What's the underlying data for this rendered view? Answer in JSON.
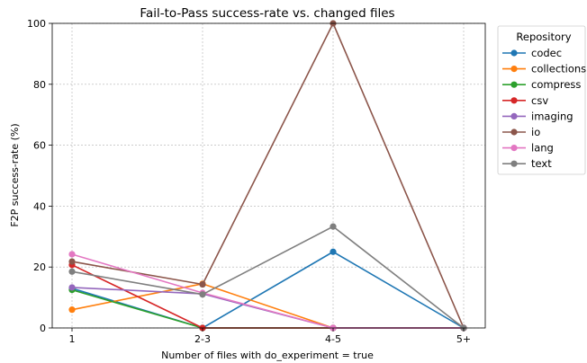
{
  "chart_data": {
    "type": "line",
    "title": "Fail-to-Pass success-rate vs. changed files",
    "xlabel": "Number of files with do_experiment = true",
    "ylabel": "F2P success-rate (%)",
    "categories": [
      "1",
      "2-3",
      "4-5",
      "5+"
    ],
    "ylim": [
      0,
      100
    ],
    "yticks": [
      0,
      20,
      40,
      60,
      80,
      100
    ],
    "grid": true,
    "legend": {
      "title": "Repository",
      "placement": "outside-top-right"
    },
    "series": [
      {
        "name": "codec",
        "color": "#1f77b4",
        "values": [
          13.0,
          0,
          25.0,
          0
        ]
      },
      {
        "name": "collections",
        "color": "#ff7f0e",
        "values": [
          6.0,
          14.5,
          0,
          0
        ]
      },
      {
        "name": "compress",
        "color": "#2ca02c",
        "values": [
          12.5,
          0,
          0,
          0
        ]
      },
      {
        "name": "csv",
        "color": "#d62728",
        "values": [
          20.7,
          0,
          0,
          0
        ]
      },
      {
        "name": "imaging",
        "color": "#9467bd",
        "values": [
          13.3,
          11.2,
          0,
          0
        ]
      },
      {
        "name": "io",
        "color": "#8c564b",
        "values": [
          21.8,
          14.3,
          100,
          0
        ]
      },
      {
        "name": "lang",
        "color": "#e377c2",
        "values": [
          24.2,
          11.5,
          0,
          0
        ]
      },
      {
        "name": "text",
        "color": "#7f7f7f",
        "values": [
          18.5,
          11.0,
          33.3,
          0
        ]
      }
    ]
  }
}
